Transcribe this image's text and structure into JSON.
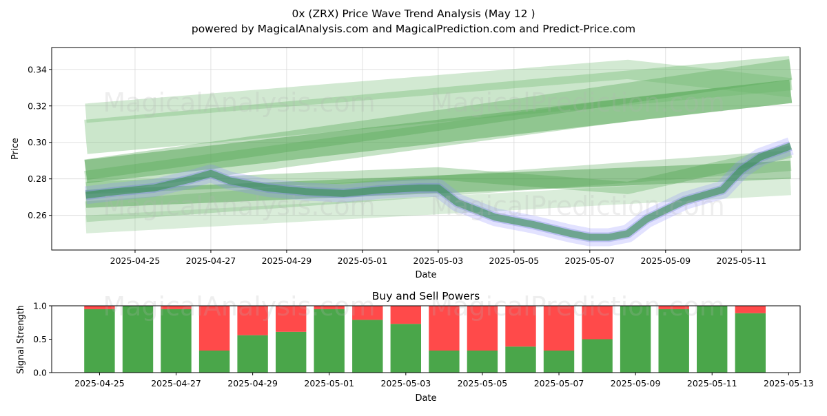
{
  "title_line1": "0x (ZRX) Price Wave Trend Analysis (May 12 )",
  "title_line2": "powered by MagicalAnalysis.com and MagicalPrediction.com and Predict-Price.com",
  "watermarks": [
    "MagicalAnalysis.com",
    "MagicalPrediction.com"
  ],
  "chart_data": [
    {
      "type": "line",
      "title": "0x (ZRX) Price Wave Trend Analysis (May 12 )",
      "xlabel": "Date",
      "ylabel": "Price",
      "ylim": [
        0.241,
        0.352
      ],
      "xlim": [
        "2025-04-22.8",
        "2025-05-12.55"
      ],
      "xticks": [
        "2025-04-25",
        "2025-04-27",
        "2025-04-29",
        "2025-05-01",
        "2025-05-03",
        "2025-05-05",
        "2025-05-07",
        "2025-05-09",
        "2025-05-11"
      ],
      "yticks": [
        "0.26",
        "0.28",
        "0.30",
        "0.32",
        "0.34"
      ],
      "grid": true,
      "price_series": {
        "name": "price",
        "x": [
          23.7,
          24.5,
          25.5,
          26.5,
          27.0,
          27.5,
          28.5,
          29.5,
          30.5,
          31.5,
          32.5,
          33.0,
          33.5,
          34.5,
          35.5,
          36.5,
          37.0,
          37.5,
          38.0,
          38.5,
          39.5,
          40.5,
          41.0,
          41.5,
          42.3
        ],
        "values": [
          0.271,
          0.273,
          0.275,
          0.28,
          0.283,
          0.279,
          0.275,
          0.273,
          0.272,
          0.274,
          0.275,
          0.275,
          0.267,
          0.259,
          0.255,
          0.25,
          0.248,
          0.248,
          0.25,
          0.258,
          0.268,
          0.274,
          0.285,
          0.292,
          0.298
        ]
      },
      "trend_bands": [
        {
          "x": [
            23.7,
            42.3
          ],
          "values": [
            0.269,
            0.285
          ]
        },
        {
          "x": [
            23.7,
            33.0,
            38.0,
            42.3
          ],
          "values": [
            0.275,
            0.283,
            0.275,
            0.295
          ]
        },
        {
          "x": [
            23.7,
            42.3
          ],
          "values": [
            0.262,
            0.29
          ]
        },
        {
          "x": [
            23.7,
            42.3
          ],
          "values": [
            0.284,
            0.328
          ]
        },
        {
          "x": [
            23.7,
            38.0,
            42.3
          ],
          "values": [
            0.278,
            0.318,
            0.328
          ]
        },
        {
          "x": [
            23.7,
            42.3
          ],
          "values": [
            0.303,
            0.338
          ]
        },
        {
          "x": [
            23.7,
            33.0,
            42.3
          ],
          "values": [
            0.285,
            0.312,
            0.34
          ]
        },
        {
          "x": [
            23.7,
            38.0,
            42.3
          ],
          "values": [
            0.316,
            0.34,
            0.33
          ]
        },
        {
          "x": [
            23.7,
            42.3
          ],
          "values": [
            0.255,
            0.276
          ]
        }
      ]
    },
    {
      "type": "bar",
      "title": "Buy and Sell Powers",
      "xlabel": "Date",
      "ylabel": "Signal Strength",
      "ylim": [
        0.0,
        1.0
      ],
      "xlim": [
        "2025-04-23.75",
        "2025-05-13.3"
      ],
      "xticks": [
        "2025-04-25",
        "2025-04-27",
        "2025-04-29",
        "2025-05-01",
        "2025-05-03",
        "2025-05-05",
        "2025-05-07",
        "2025-05-09",
        "2025-05-11",
        "2025-05-13"
      ],
      "yticks": [
        "0.0",
        "0.5",
        "1.0"
      ],
      "categories": [
        "2025-04-25",
        "2025-04-26",
        "2025-04-27",
        "2025-04-28",
        "2025-04-29",
        "2025-04-30",
        "2025-05-01",
        "2025-05-02",
        "2025-05-03",
        "2025-05-04",
        "2025-05-05",
        "2025-05-06",
        "2025-05-07",
        "2025-05-08",
        "2025-05-09",
        "2025-05-10",
        "2025-05-11",
        "2025-05-12"
      ],
      "series": [
        {
          "name": "Buy",
          "color": "#4aa64a",
          "values": [
            0.95,
            1.0,
            0.95,
            0.33,
            0.56,
            0.61,
            0.95,
            0.79,
            0.73,
            0.33,
            0.33,
            0.39,
            0.33,
            0.5,
            1.0,
            0.95,
            1.0,
            0.89
          ]
        },
        {
          "name": "Sell",
          "color": "#ff4a4a",
          "values": [
            0.05,
            0.0,
            0.05,
            0.67,
            0.44,
            0.39,
            0.05,
            0.21,
            0.27,
            0.67,
            0.67,
            0.61,
            0.67,
            0.5,
            0.0,
            0.05,
            0.0,
            0.11
          ]
        }
      ]
    }
  ]
}
